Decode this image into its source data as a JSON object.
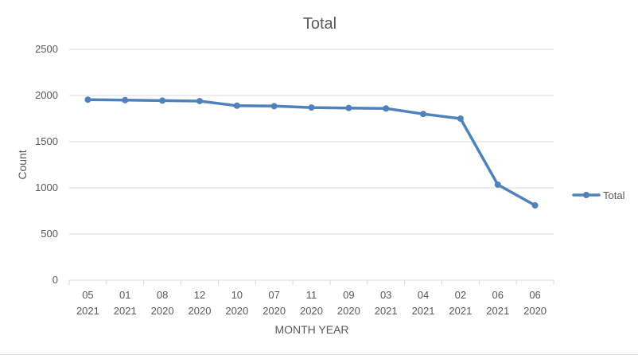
{
  "chart_data": {
    "type": "line",
    "title": "Total",
    "xlabel": "MONTH YEAR",
    "ylabel": "Count",
    "ylim": [
      0,
      2500
    ],
    "yticks": [
      0,
      500,
      1000,
      1500,
      2000,
      2500
    ],
    "grid": true,
    "legend_position": "right",
    "categories": [
      {
        "month": "05",
        "year": "2021"
      },
      {
        "month": "01",
        "year": "2021"
      },
      {
        "month": "08",
        "year": "2020"
      },
      {
        "month": "12",
        "year": "2020"
      },
      {
        "month": "10",
        "year": "2020"
      },
      {
        "month": "07",
        "year": "2020"
      },
      {
        "month": "11",
        "year": "2020"
      },
      {
        "month": "09",
        "year": "2020"
      },
      {
        "month": "03",
        "year": "2021"
      },
      {
        "month": "04",
        "year": "2021"
      },
      {
        "month": "02",
        "year": "2021"
      },
      {
        "month": "06",
        "year": "2021"
      },
      {
        "month": "06",
        "year": "2020"
      }
    ],
    "series": [
      {
        "name": "Total",
        "color": "#4f81bd",
        "values": [
          1955,
          1950,
          1945,
          1940,
          1890,
          1885,
          1870,
          1865,
          1860,
          1800,
          1750,
          1035,
          810
        ]
      }
    ]
  }
}
